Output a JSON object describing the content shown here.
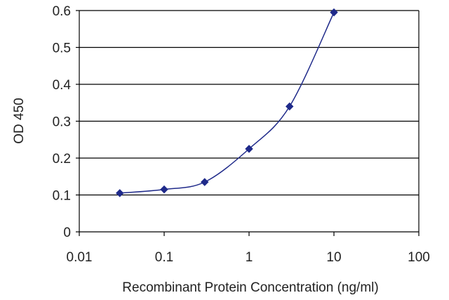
{
  "chart_data": {
    "type": "line",
    "title": "",
    "xlabel": "Recombinant Protein Concentration (ng/ml)",
    "ylabel": "OD 450",
    "x_scale": "log",
    "xlim": [
      0.01,
      100
    ],
    "ylim": [
      0,
      0.6
    ],
    "x_ticks": [
      "0.01",
      "0.1",
      "1",
      "10",
      "100"
    ],
    "y_ticks": [
      "0",
      "0.1",
      "0.2",
      "0.3",
      "0.4",
      "0.5",
      "0.6"
    ],
    "grid": "horizontal",
    "legend": "none",
    "series": [
      {
        "x": [
          0.03,
          0.1,
          0.3,
          1,
          3,
          10
        ],
        "y": [
          0.105,
          0.115,
          0.135,
          0.225,
          0.34,
          0.595
        ],
        "color": "#1f2a8a",
        "marker": "diamond",
        "smooth": true
      }
    ]
  }
}
